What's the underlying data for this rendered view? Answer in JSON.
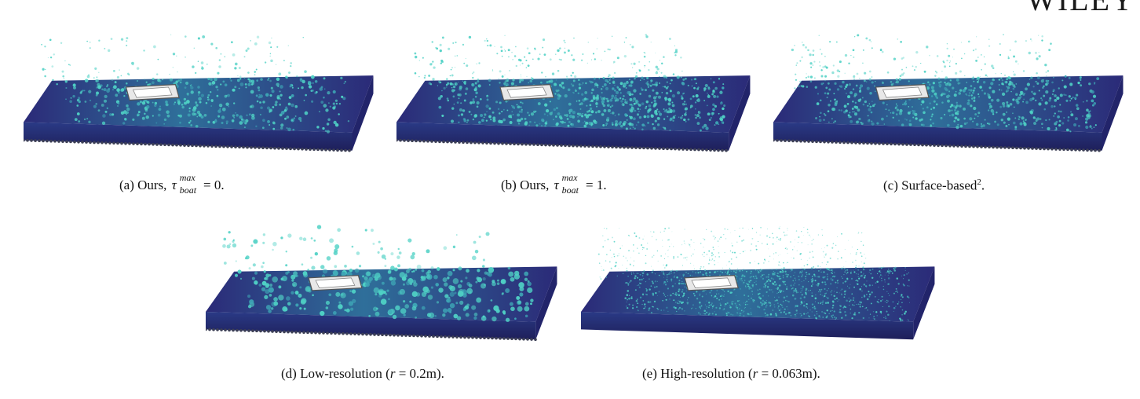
{
  "header": {
    "journal_mark": "WILEY"
  },
  "panels": [
    {
      "id": "a",
      "tag": "(a)",
      "text": "Ours,",
      "tau_symbol": "τ",
      "tau_sup": "max",
      "tau_sub": "boat",
      "tau_value": "= 0.",
      "turbulence": 0.55,
      "spray": 0.35,
      "particle_size": 1.0
    },
    {
      "id": "b",
      "tag": "(b)",
      "text": "Ours,",
      "tau_symbol": "τ",
      "tau_sup": "max",
      "tau_sub": "boat",
      "tau_value": "= 1.",
      "turbulence": 0.85,
      "spray": 0.55,
      "particle_size": 0.9
    },
    {
      "id": "c",
      "tag": "(c)",
      "text": "Surface-based",
      "footnote": "2",
      "suffix": ".",
      "turbulence": 0.7,
      "spray": 0.5,
      "particle_size": 0.9
    },
    {
      "id": "d",
      "tag": "(d)",
      "text": "Low-resolution (",
      "var": "r",
      "rest": " = 0.2m).",
      "turbulence": 0.6,
      "spray": 0.45,
      "particle_size": 1.6
    },
    {
      "id": "e",
      "tag": "(e)",
      "text": "High-resolution (",
      "var": "r",
      "rest": " = 0.063m).",
      "turbulence": 0.8,
      "spray": 0.6,
      "particle_size": 0.55
    }
  ],
  "colors": {
    "deep": "#2b2a78",
    "mid": "#2f6f9a",
    "foam": "#4fd1c5",
    "boat": "#e8e8e8",
    "base": "#3c3f55"
  }
}
